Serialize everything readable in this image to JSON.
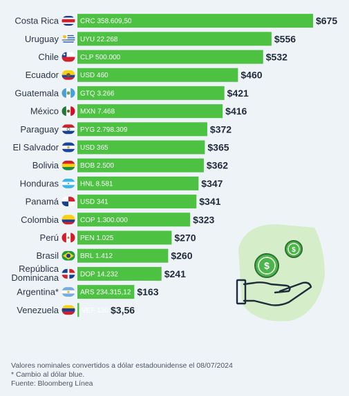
{
  "chart_data": {
    "type": "bar",
    "orientation": "horizontal",
    "unit": "USD",
    "categories": [
      "Costa Rica",
      "Uruguay",
      "Chile",
      "Ecuador",
      "Guatemala",
      "México",
      "Paraguay",
      "El Salvador",
      "Bolivia",
      "Honduras",
      "Panamá",
      "Colombia",
      "Perú",
      "Brasil",
      "República Dominicana",
      "Argentina*",
      "Venezuela"
    ],
    "category_lines": [
      [
        "Costa Rica"
      ],
      [
        "Uruguay"
      ],
      [
        "Chile"
      ],
      [
        "Ecuador"
      ],
      [
        "Guatemala"
      ],
      [
        "México"
      ],
      [
        "Paraguay"
      ],
      [
        "El Salvador"
      ],
      [
        "Bolivia"
      ],
      [
        "Honduras"
      ],
      [
        "Panamá"
      ],
      [
        "Colombia"
      ],
      [
        "Perú"
      ],
      [
        "Brasil"
      ],
      [
        "República",
        "Dominicana"
      ],
      [
        "Argentina*"
      ],
      [
        "Venezuela"
      ]
    ],
    "values": [
      675,
      556,
      532,
      460,
      421,
      416,
      372,
      365,
      362,
      347,
      341,
      323,
      270,
      260,
      241,
      163,
      3.56
    ],
    "value_labels": [
      "$675",
      "$556",
      "$532",
      "$460",
      "$421",
      "$416",
      "$372",
      "$365",
      "$362",
      "$347",
      "$341",
      "$323",
      "$270",
      "$260",
      "$241",
      "$163",
      "$3,56"
    ],
    "local_labels": [
      "CRC 358.609,50",
      "UYU 22.268",
      "CLP 500.000",
      "USD 460",
      "GTQ 3.266",
      "MXN 7.468",
      "PYG 2.798.309",
      "USD 365",
      "BOB 2.500",
      "HNL 8.581",
      "USD 341",
      "COP 1.300.000",
      "PEN 1.025",
      "BRL 1.412",
      "DOP 14.232",
      "ARS 234.315,12",
      "VEF 130"
    ],
    "flags": [
      "flag-costa-rica",
      "flag-uruguay",
      "flag-chile",
      "flag-ecuador",
      "flag-guatemala",
      "flag-mexico",
      "flag-paraguay",
      "flag-el-salvador",
      "flag-bolivia",
      "flag-honduras",
      "flag-panama",
      "flag-colombia",
      "flag-peru",
      "flag-brazil",
      "flag-dominican-republic",
      "flag-argentina",
      "flag-venezuela"
    ],
    "xlim": [
      0,
      675
    ],
    "grid": false,
    "legend": "none",
    "bar_color": "#4cc142"
  },
  "decoration": {
    "icon": "hand-holding-coins-icon",
    "badge_color": "#d6edc9",
    "coin_color": "#3d8f45"
  },
  "footer": {
    "line1": "Valores nominales convertidos a dólar estadounidense el 08/07/2024",
    "line2": "* Cambio al dólar blue.",
    "line3": "Fuente: Bloomberg Línea"
  }
}
